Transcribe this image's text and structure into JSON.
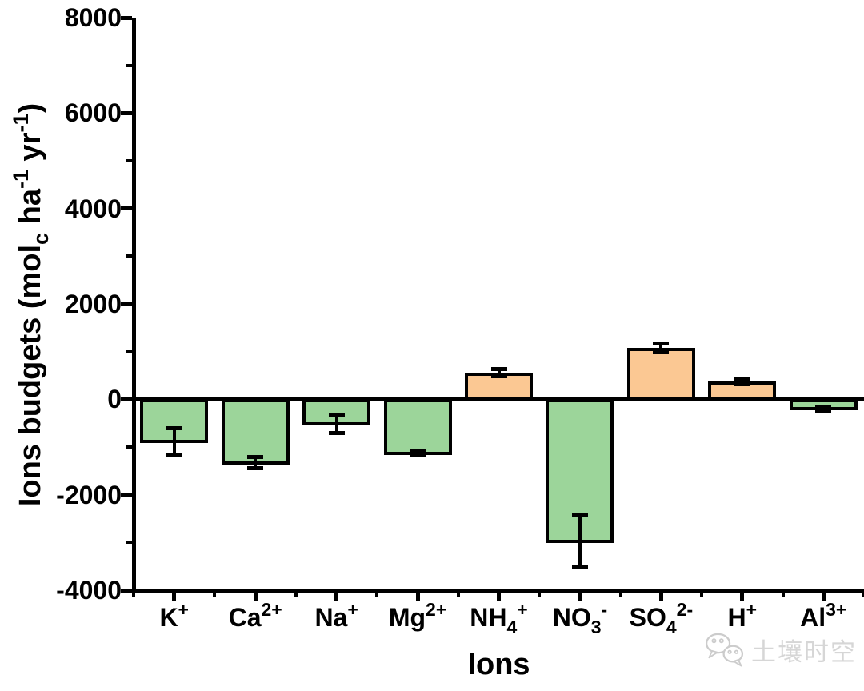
{
  "figure": {
    "watermark": {
      "text": "土壤时空",
      "icon": "wechat-icon",
      "color": "#cccccc"
    }
  },
  "chart_data": {
    "type": "bar",
    "title": "",
    "xlabel": "Ions",
    "ylabel": "Ions budgets (mol_c ha-1 yr-1)",
    "ylabel_segments": [
      {
        "t": "Ions budgets (mol",
        "s": "n"
      },
      {
        "t": "c",
        "s": "sub"
      },
      {
        "t": " ha",
        "s": "n"
      },
      {
        "t": "-1",
        "s": "sup"
      },
      {
        "t": " yr",
        "s": "n"
      },
      {
        "t": "-1",
        "s": "sup"
      },
      {
        "t": ")",
        "s": "n"
      }
    ],
    "categories": [
      "K⁺",
      "Ca²⁺",
      "Na⁺",
      "Mg²⁺",
      "NH₄⁺",
      "NO₃⁻",
      "SO₄²⁻",
      "H⁺",
      "Al³⁺"
    ],
    "category_parts": [
      [
        {
          "t": "K",
          "s": "n"
        },
        {
          "t": "+",
          "s": "sup"
        }
      ],
      [
        {
          "t": "Ca",
          "s": "n"
        },
        {
          "t": "2+",
          "s": "sup"
        }
      ],
      [
        {
          "t": "Na",
          "s": "n"
        },
        {
          "t": "+",
          "s": "sup"
        }
      ],
      [
        {
          "t": "Mg",
          "s": "n"
        },
        {
          "t": "2+",
          "s": "sup"
        }
      ],
      [
        {
          "t": "NH",
          "s": "n"
        },
        {
          "t": "4",
          "s": "sub"
        },
        {
          "t": "+",
          "s": "sup"
        }
      ],
      [
        {
          "t": "NO",
          "s": "n"
        },
        {
          "t": "3",
          "s": "sub"
        },
        {
          "t": "-",
          "s": "sup"
        }
      ],
      [
        {
          "t": "SO",
          "s": "n"
        },
        {
          "t": "4",
          "s": "sub"
        },
        {
          "t": "2-",
          "s": "sup"
        }
      ],
      [
        {
          "t": "H",
          "s": "n"
        },
        {
          "t": "+",
          "s": "sup"
        }
      ],
      [
        {
          "t": "Al",
          "s": "n"
        },
        {
          "t": "3+",
          "s": "sup"
        }
      ]
    ],
    "values": [
      -880,
      -1330,
      -510,
      -1130,
      560,
      -2980,
      1080,
      370,
      -200
    ],
    "errors": [
      280,
      120,
      190,
      50,
      70,
      550,
      90,
      50,
      40
    ],
    "bar_colors": [
      "#9CD59A",
      "#9CD59A",
      "#9CD59A",
      "#9CD59A",
      "#FBC893",
      "#9CD59A",
      "#FBC893",
      "#FBC893",
      "#9CD59A"
    ],
    "positive_color": "#FBC893",
    "negative_color": "#9CD59A",
    "edge_color": "#000000",
    "ylim": [
      -4000,
      8000
    ],
    "y_major_ticks": [
      8000,
      6000,
      4000,
      2000,
      0,
      -2000,
      -4000
    ],
    "y_minor_ticks": [
      7000,
      5000,
      3000,
      1000,
      -1000,
      -3000
    ],
    "grid": false,
    "legend": null,
    "error_bars": true
  }
}
